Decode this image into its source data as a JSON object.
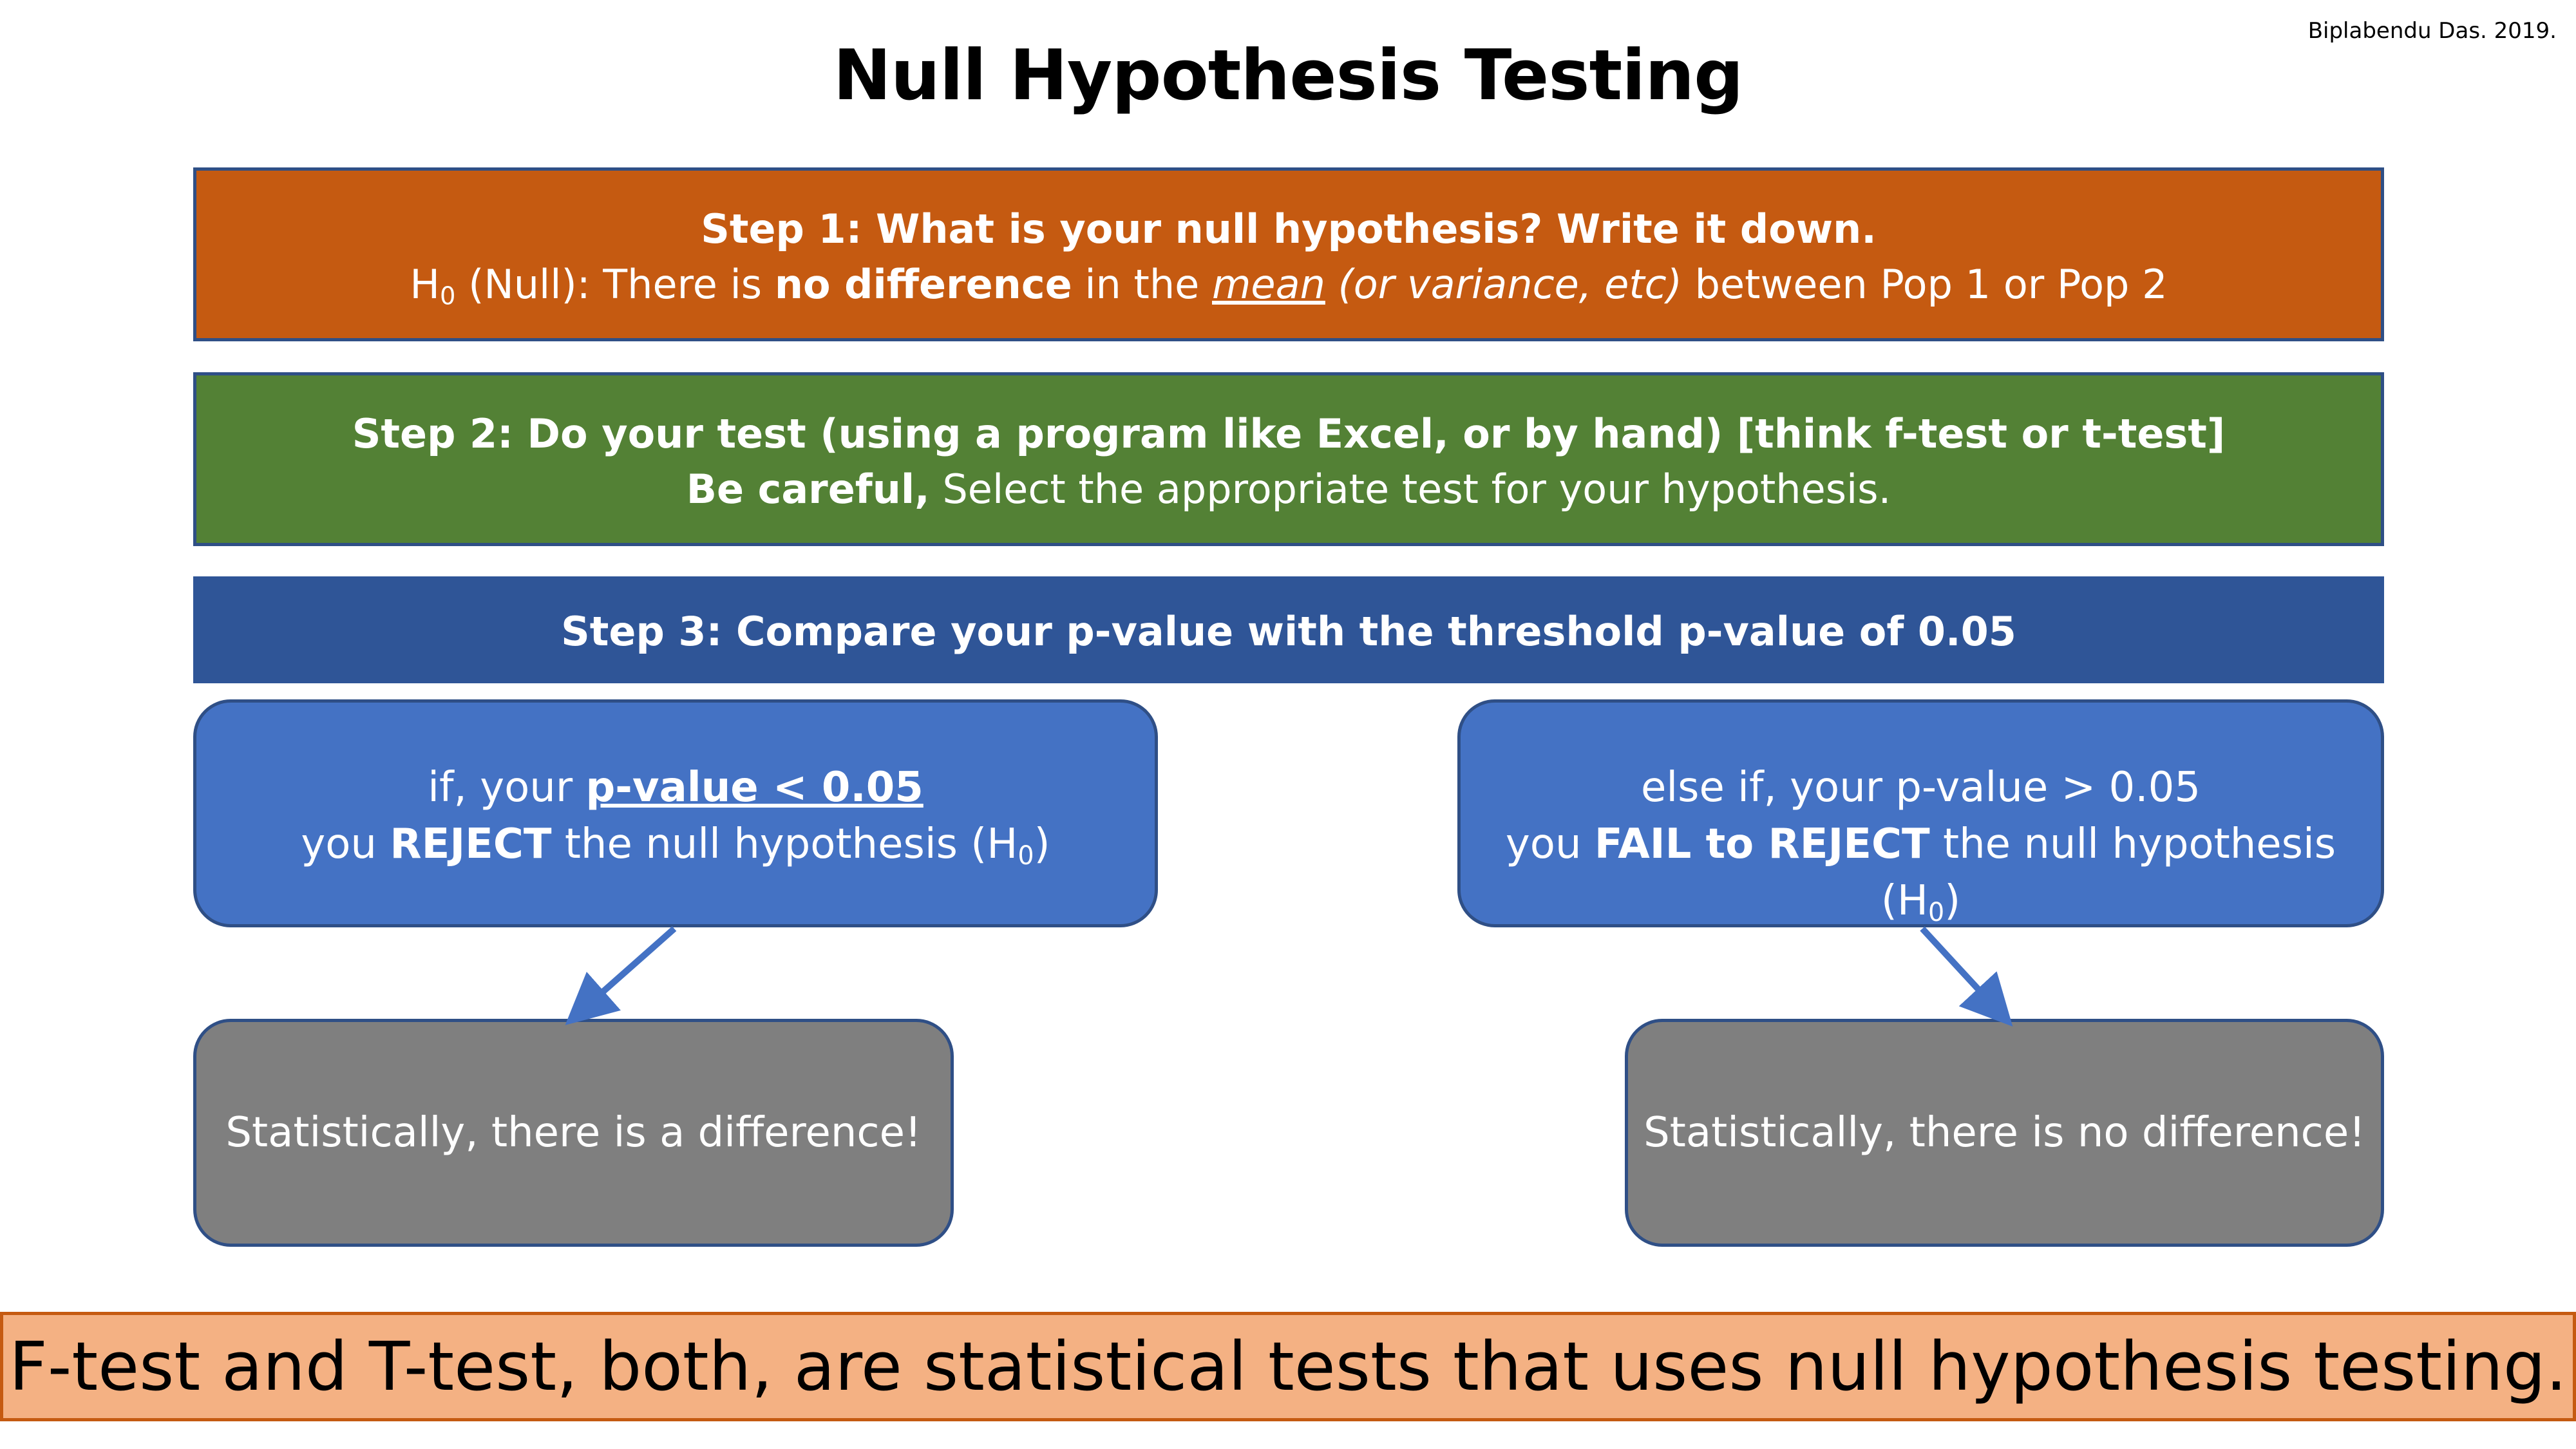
{
  "credit": "Biplabendu Das. 2019.",
  "title": "Null Hypothesis Testing",
  "step1": {
    "heading": "Step 1: What is your null hypothesis? Write it down.",
    "h_symbol": "H",
    "h_sub": "0",
    "prefix": " (Null): There is ",
    "emphasis": "no difference",
    "mid": " in the ",
    "mean": "mean",
    "paren": " (or variance, etc)",
    "suffix": " between Pop 1 or Pop 2"
  },
  "step2": {
    "heading": "Step 2: Do your test (using a program like Excel, or by hand) [think f-test or t-test]",
    "careful": "Be careful,",
    "rest": " Select the appropriate test for your hypothesis."
  },
  "step3": {
    "heading": "Step 3: Compare your p-value with the threshold p-value of 0.05"
  },
  "branch_reject": {
    "line1_prefix": "if, your ",
    "line1_emph": "p-value < 0.05",
    "line2_prefix": "you ",
    "line2_emph": "REJECT",
    "line2_suffix": " the null hypothesis (H",
    "h_sub": "0",
    "close": ")"
  },
  "branch_fail": {
    "line1": "else if, your p-value > 0.05",
    "line2_prefix": "you ",
    "line2_emph": "FAIL to REJECT",
    "line2_suffix": " the null hypothesis (H",
    "h_sub": "0",
    "close": ")"
  },
  "outcome_difference": "Statistically, there is a difference!",
  "outcome_no_difference": "Statistically, there is no difference!",
  "footer": "F-test and T-test, both, are statistical tests that uses null hypothesis testing.",
  "colors": {
    "step1": "#c55a11",
    "step2": "#538135",
    "step3": "#2f5597",
    "branch": "#4472c4",
    "outcome": "#7f7f7f",
    "footer": "#f4b183",
    "arrow": "#4472c4"
  }
}
